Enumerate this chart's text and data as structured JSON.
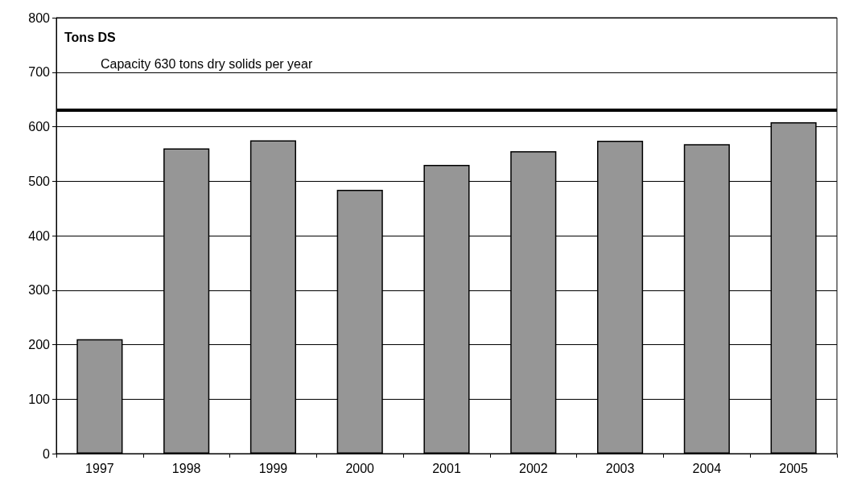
{
  "chart_data": {
    "type": "bar",
    "ylabel": "Tons DS",
    "categories": [
      "1997",
      "1998",
      "1999",
      "2000",
      "2001",
      "2002",
      "2003",
      "2004",
      "2005"
    ],
    "values": [
      210,
      560,
      575,
      484,
      530,
      555,
      574,
      568,
      608
    ],
    "color": "#969696",
    "ylim": [
      0,
      800
    ],
    "yticks": [
      0,
      100,
      200,
      300,
      400,
      500,
      600,
      700,
      800
    ],
    "grid": "y",
    "ref_lines": [
      {
        "axis": "y",
        "value": 630,
        "label": "Capacity 630 tons dry solids per year",
        "color": "#000000"
      }
    ]
  }
}
